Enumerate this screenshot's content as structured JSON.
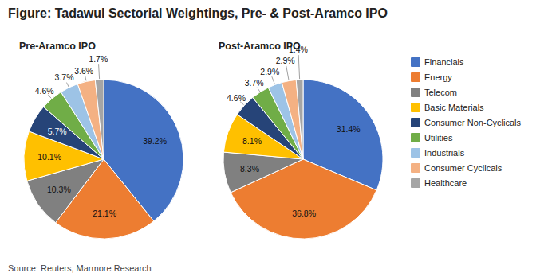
{
  "chart_data": {
    "type": "pie",
    "title": "Figure: Tadawul Sectorial Weightings, Pre- & Post-Aramco IPO",
    "annotations": [
      "Source: Reuters, Marmore Research"
    ],
    "categories": [
      "Financials",
      "Energy",
      "Telecom",
      "Basic Materials",
      "Consumer Non-Cyclicals",
      "Utilities",
      "Industrials",
      "Consumer Cyclicals",
      "Healthcare"
    ],
    "colors": [
      "#4472C4",
      "#ED7D31",
      "#808080",
      "#FFC000",
      "#264478",
      "#70AD47",
      "#9DC3E6",
      "#F4B183",
      "#A5A5A5"
    ],
    "series": [
      {
        "name": "Pre-Aramco IPO",
        "values": [
          39.2,
          21.1,
          10.3,
          10.1,
          5.7,
          4.6,
          3.7,
          3.6,
          1.7
        ],
        "value_labels": [
          "39.2%",
          "21.1%",
          "10.3%",
          "10.1%",
          "5.7%",
          "4.6%",
          "3.7%",
          "3.6%",
          "1.7%"
        ]
      },
      {
        "name": "Post-Aramco IPO",
        "values": [
          31.4,
          36.8,
          8.3,
          8.1,
          4.6,
          3.7,
          2.9,
          2.9,
          1.4
        ],
        "value_labels": [
          "31.4%",
          "36.8%",
          "8.3%",
          "8.1%",
          "4.6%",
          "3.7%",
          "2.9%",
          "2.9%",
          "1.4%"
        ]
      }
    ],
    "data_labels": true,
    "legend": "upper right"
  }
}
